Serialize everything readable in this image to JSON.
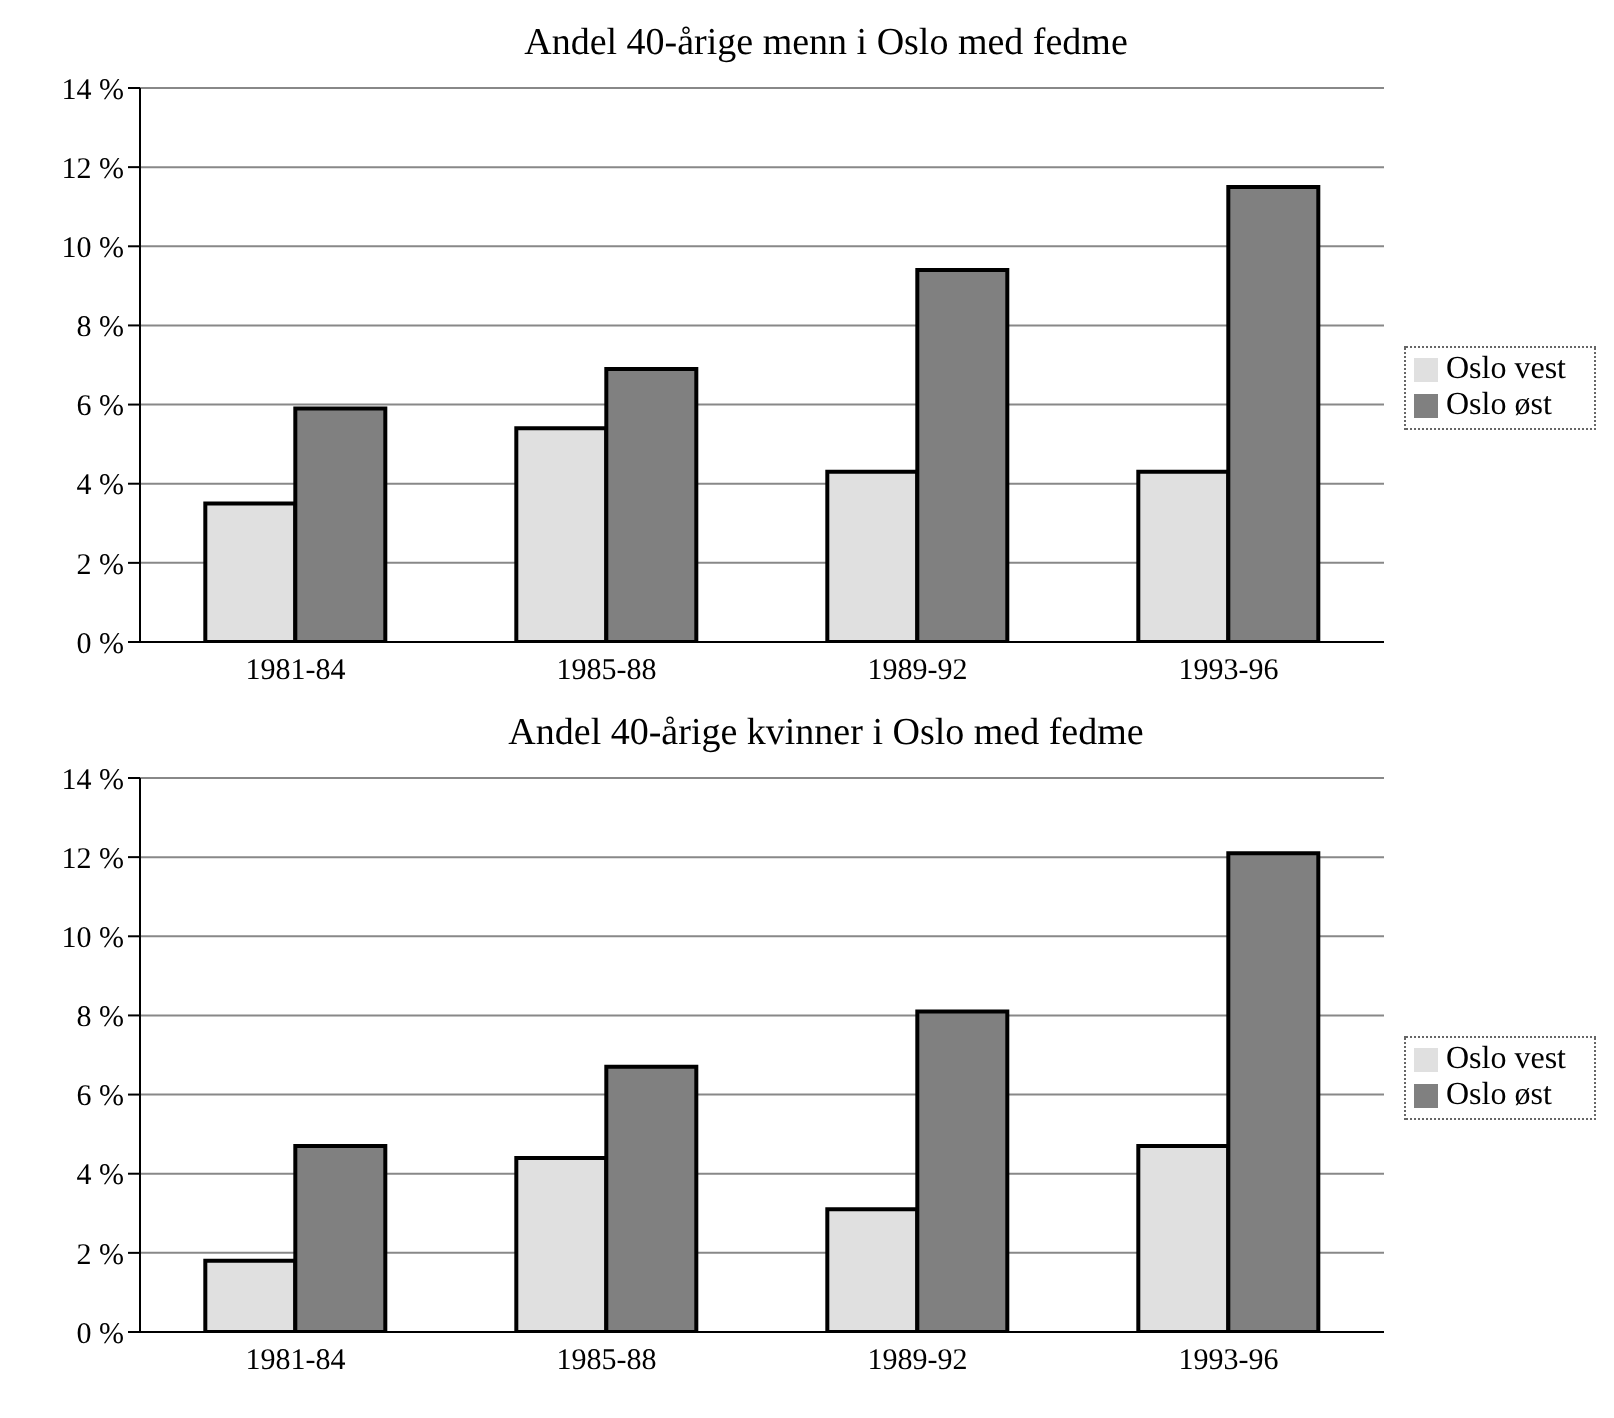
{
  "chart_data": [
    {
      "type": "bar",
      "title": "Andel 40-årige menn i Oslo med fedme",
      "categories": [
        "1981-84",
        "1985-88",
        "1989-92",
        "1993-96"
      ],
      "series": [
        {
          "name": "Oslo vest",
          "color": "#e0e0e0",
          "values": [
            3.5,
            5.4,
            4.3,
            4.3
          ]
        },
        {
          "name": "Oslo øst",
          "color": "#808080",
          "values": [
            5.9,
            6.9,
            9.4,
            11.5
          ]
        }
      ],
      "ylim": [
        0,
        14
      ],
      "yticks": [
        {
          "value": 0,
          "label": "0 %"
        },
        {
          "value": 2,
          "label": "2 %"
        },
        {
          "value": 4,
          "label": "4 %"
        },
        {
          "value": 6,
          "label": "6 %"
        },
        {
          "value": 8,
          "label": "8 %"
        },
        {
          "value": 10,
          "label": "10 %"
        },
        {
          "value": 12,
          "label": "12 %"
        },
        {
          "value": 14,
          "label": "14 %"
        }
      ],
      "grid": "y",
      "legend": "right"
    },
    {
      "type": "bar",
      "title": "Andel 40-årige kvinner i Oslo med fedme",
      "categories": [
        "1981-84",
        "1985-88",
        "1989-92",
        "1993-96"
      ],
      "series": [
        {
          "name": "Oslo vest",
          "color": "#e0e0e0",
          "values": [
            1.8,
            4.4,
            3.1,
            4.7
          ]
        },
        {
          "name": "Oslo øst",
          "color": "#808080",
          "values": [
            4.7,
            6.7,
            8.1,
            12.1
          ]
        }
      ],
      "ylim": [
        0,
        14
      ],
      "yticks": [
        {
          "value": 0,
          "label": "0 %"
        },
        {
          "value": 2,
          "label": "2 %"
        },
        {
          "value": 4,
          "label": "4 %"
        },
        {
          "value": 6,
          "label": "6 %"
        },
        {
          "value": 8,
          "label": "8 %"
        },
        {
          "value": 10,
          "label": "10 %"
        },
        {
          "value": 12,
          "label": "12 %"
        },
        {
          "value": 14,
          "label": "14 %"
        }
      ],
      "grid": "y",
      "legend": "right"
    }
  ]
}
